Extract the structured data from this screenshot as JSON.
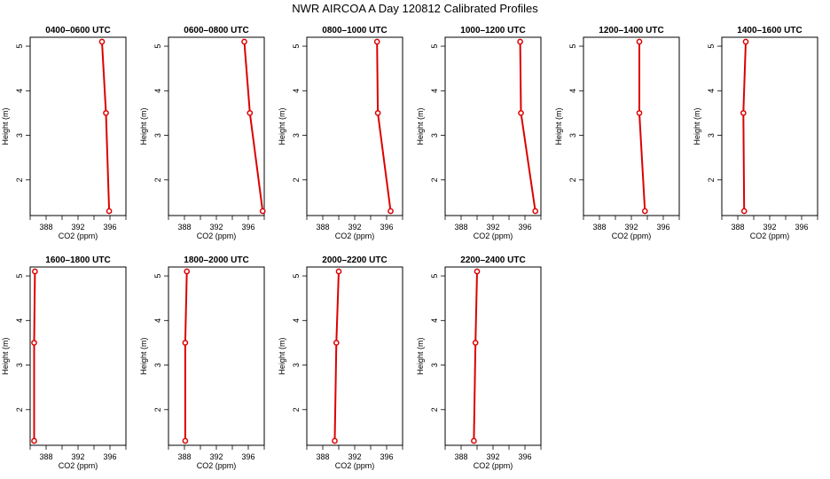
{
  "page": {
    "title": "NWR AIRCOA A  Day 120812  Calibrated Profiles"
  },
  "colors": {
    "profile_line": "#dd0000",
    "profile_marker": "#dd0000",
    "axis": "#000000"
  },
  "chart_data": [
    {
      "type": "line",
      "title": "0400–0600 UTC",
      "xlabel": "CO2 (ppm)",
      "ylabel": "Height (m)",
      "xlim": [
        386,
        398
      ],
      "ylim": [
        1.2,
        5.2
      ],
      "xticks": [
        "388",
        "392",
        "396"
      ],
      "yticks": [
        "2",
        "3",
        "4",
        "5"
      ],
      "x": [
        395.0,
        395.5,
        395.9
      ],
      "y": [
        5.1,
        3.5,
        1.3
      ]
    },
    {
      "type": "line",
      "title": "0600–0800 UTC",
      "xlabel": "CO2 (ppm)",
      "ylabel": "Height (m)",
      "xlim": [
        386,
        398
      ],
      "ylim": [
        1.2,
        5.2
      ],
      "xticks": [
        "388",
        "392",
        "396"
      ],
      "yticks": [
        "2",
        "3",
        "4",
        "5"
      ],
      "x": [
        395.5,
        396.2,
        397.8
      ],
      "y": [
        5.1,
        3.5,
        1.3
      ]
    },
    {
      "type": "line",
      "title": "0800–1000 UTC",
      "xlabel": "CO2 (ppm)",
      "ylabel": "Height (m)",
      "xlim": [
        386,
        398
      ],
      "ylim": [
        1.2,
        5.2
      ],
      "xticks": [
        "388",
        "392",
        "396"
      ],
      "yticks": [
        "2",
        "3",
        "4",
        "5"
      ],
      "x": [
        394.8,
        394.9,
        396.5
      ],
      "y": [
        5.1,
        3.5,
        1.3
      ]
    },
    {
      "type": "line",
      "title": "1000–1200 UTC",
      "xlabel": "CO2 (ppm)",
      "ylabel": "Height (m)",
      "xlim": [
        386,
        398
      ],
      "ylim": [
        1.2,
        5.2
      ],
      "xticks": [
        "388",
        "392",
        "396"
      ],
      "yticks": [
        "2",
        "3",
        "4",
        "5"
      ],
      "x": [
        395.4,
        395.5,
        397.3
      ],
      "y": [
        5.1,
        3.5,
        1.3
      ]
    },
    {
      "type": "line",
      "title": "1200–1400 UTC",
      "xlabel": "CO2 (ppm)",
      "ylabel": "Height (m)",
      "xlim": [
        386,
        398
      ],
      "ylim": [
        1.2,
        5.2
      ],
      "xticks": [
        "388",
        "392",
        "396"
      ],
      "yticks": [
        "2",
        "3",
        "4",
        "5"
      ],
      "x": [
        393.0,
        393.0,
        393.7
      ],
      "y": [
        5.1,
        3.5,
        1.3
      ]
    },
    {
      "type": "line",
      "title": "1400–1600 UTC",
      "xlabel": "CO2 (ppm)",
      "ylabel": "Height (m)",
      "xlim": [
        386,
        398
      ],
      "ylim": [
        1.2,
        5.2
      ],
      "xticks": [
        "388",
        "392",
        "396"
      ],
      "yticks": [
        "2",
        "3",
        "4",
        "5"
      ],
      "x": [
        389.0,
        388.7,
        388.8
      ],
      "y": [
        5.1,
        3.5,
        1.3
      ]
    },
    {
      "type": "line",
      "title": "1600–1800 UTC",
      "xlabel": "CO2 (ppm)",
      "ylabel": "Height (m)",
      "xlim": [
        386,
        398
      ],
      "ylim": [
        1.2,
        5.2
      ],
      "xticks": [
        "388",
        "392",
        "396"
      ],
      "yticks": [
        "2",
        "3",
        "4",
        "5"
      ],
      "x": [
        386.6,
        386.5,
        386.5
      ],
      "y": [
        5.1,
        3.5,
        1.3
      ]
    },
    {
      "type": "line",
      "title": "1800–2000 UTC",
      "xlabel": "CO2 (ppm)",
      "ylabel": "Height (m)",
      "xlim": [
        386,
        398
      ],
      "ylim": [
        1.2,
        5.2
      ],
      "xticks": [
        "388",
        "392",
        "396"
      ],
      "yticks": [
        "2",
        "3",
        "4",
        "5"
      ],
      "x": [
        388.3,
        388.1,
        388.1
      ],
      "y": [
        5.1,
        3.5,
        1.3
      ]
    },
    {
      "type": "line",
      "title": "2000–2200 UTC",
      "xlabel": "CO2 (ppm)",
      "ylabel": "Height (m)",
      "xlim": [
        386,
        398
      ],
      "ylim": [
        1.2,
        5.2
      ],
      "xticks": [
        "388",
        "392",
        "396"
      ],
      "yticks": [
        "2",
        "3",
        "4",
        "5"
      ],
      "x": [
        390.0,
        389.7,
        389.5
      ],
      "y": [
        5.1,
        3.5,
        1.3
      ]
    },
    {
      "type": "line",
      "title": "2200–2400 UTC",
      "xlabel": "CO2 (ppm)",
      "ylabel": "Height (m)",
      "xlim": [
        386,
        398
      ],
      "ylim": [
        1.2,
        5.2
      ],
      "xticks": [
        "388",
        "392",
        "396"
      ],
      "yticks": [
        "2",
        "3",
        "4",
        "5"
      ],
      "x": [
        390.0,
        389.8,
        389.6
      ],
      "y": [
        5.1,
        3.5,
        1.3
      ]
    }
  ]
}
